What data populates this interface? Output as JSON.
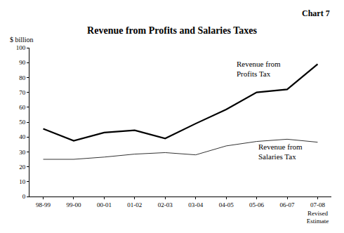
{
  "chart_data": {
    "type": "line",
    "title": "Revenue from Profits and Salaries Taxes",
    "annotations": [
      "Chart 7"
    ],
    "y_label": "$ billion",
    "categories": [
      "98-99",
      "99-00",
      "00-01",
      "01-02",
      "02-03",
      "03-04",
      "04-05",
      "05-06",
      "06-07",
      "07-08\nRevised\nEstimate"
    ],
    "series": [
      {
        "name": "Revenue from\nProfits Tax",
        "color": "#000000",
        "values": [
          45.5,
          37.5,
          43,
          44.5,
          39,
          49,
          58.5,
          70,
          72,
          89
        ]
      },
      {
        "name": "Revenue from\nSalaries Tax",
        "color": "#333333",
        "values": [
          25,
          25,
          26.5,
          28.5,
          29.5,
          28,
          34,
          37,
          38.5,
          36.5
        ]
      }
    ],
    "ylim": [
      0,
      100
    ],
    "yticks": [
      0,
      10,
      20,
      30,
      40,
      50,
      60,
      70,
      80,
      90,
      100
    ],
    "grid": false,
    "legend": "none"
  }
}
